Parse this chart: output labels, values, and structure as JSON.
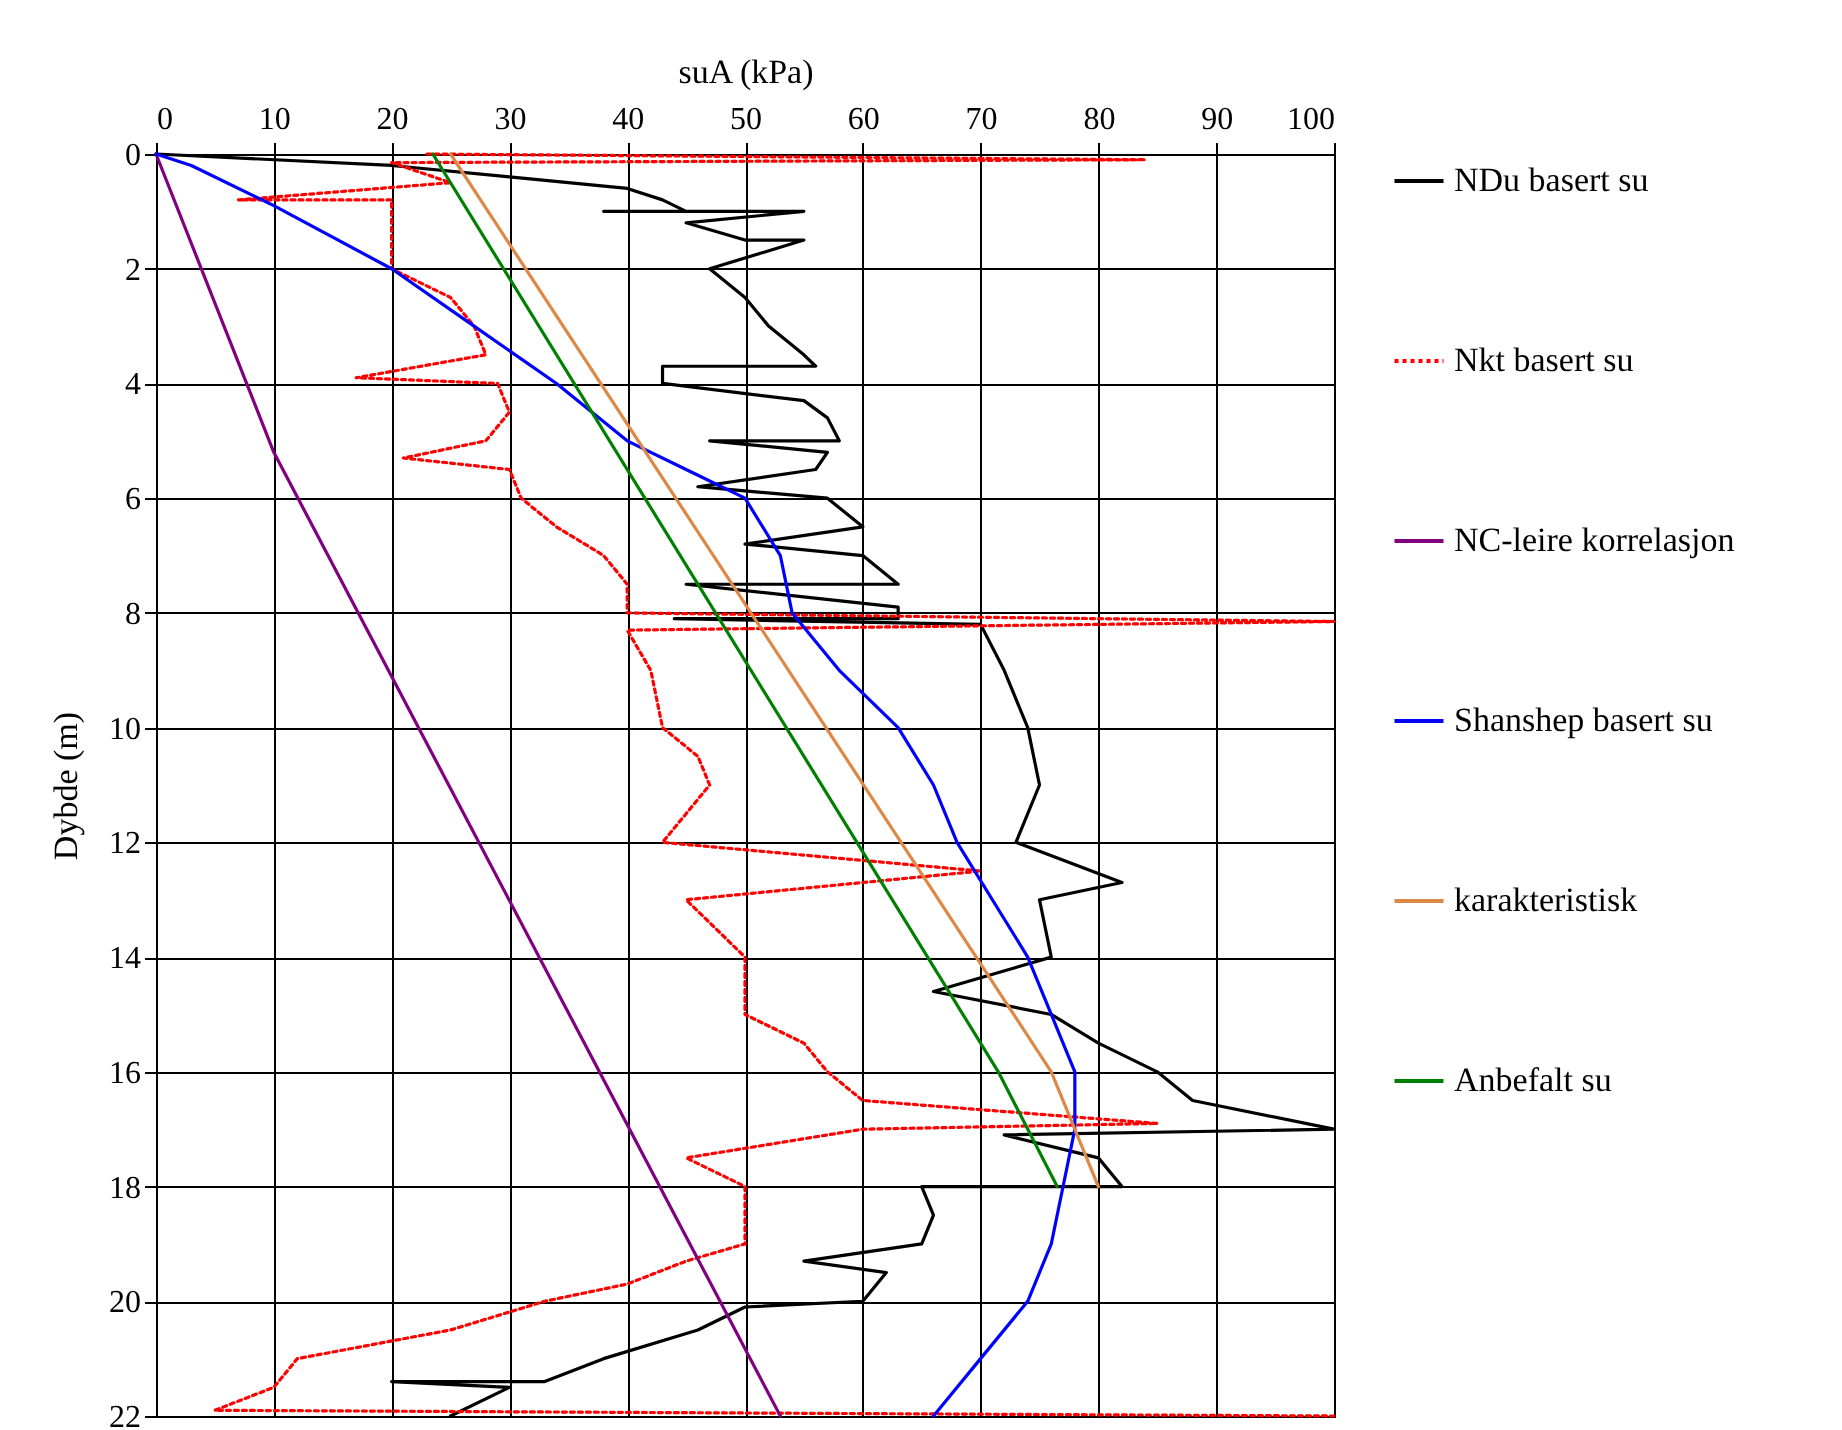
{
  "chart_data": {
    "type": "line",
    "xlabel": "suA (kPa)",
    "ylabel": "Dybde (m)",
    "xlim": [
      0,
      100
    ],
    "xticks": [
      0,
      10,
      20,
      30,
      40,
      50,
      60,
      70,
      80,
      90,
      100
    ],
    "ylim": [
      22,
      0
    ],
    "yticks": [
      0,
      2,
      4,
      6,
      8,
      10,
      12,
      14,
      16,
      18,
      20,
      22
    ],
    "grid": true,
    "legend": "right",
    "marker": "none",
    "series": [
      {
        "name": "NDu basert su",
        "color": "#000000",
        "line_style": "solid",
        "x": [
          0,
          20,
          30,
          40,
          43,
          45,
          38,
          55,
          45,
          50,
          55,
          47,
          50,
          52,
          55,
          56,
          43,
          43,
          55,
          57,
          58,
          47,
          57,
          56,
          46,
          57,
          60,
          50,
          60,
          63,
          45,
          63,
          63,
          44,
          70,
          72,
          74,
          75,
          73,
          82,
          75,
          76,
          66,
          76,
          80,
          85,
          88,
          100,
          72,
          80,
          82,
          65,
          66,
          65,
          55,
          62,
          60,
          50,
          46,
          38,
          33,
          20,
          30,
          25
        ],
        "values": [
          0,
          0.2,
          0.4,
          0.6,
          0.8,
          1.0,
          1.0,
          1.0,
          1.2,
          1.5,
          1.5,
          2,
          2.5,
          3,
          3.5,
          3.7,
          3.7,
          4.0,
          4.3,
          4.6,
          5.0,
          5.0,
          5.2,
          5.5,
          5.8,
          6,
          6.5,
          6.8,
          7,
          7.5,
          7.5,
          7.9,
          8.1,
          8.1,
          8.2,
          9,
          10,
          11,
          12,
          12.7,
          13,
          14,
          14.6,
          15,
          15.5,
          16,
          16.5,
          17,
          17.1,
          17.5,
          18,
          18,
          18.5,
          19,
          19.3,
          19.5,
          20,
          20.1,
          20.5,
          21,
          21.4,
          21.4,
          21.5,
          22
        ]
      },
      {
        "name": "Nkt basert su",
        "color": "#ff0000",
        "line_style": "dotted",
        "x": [
          23,
          84,
          20,
          25,
          7,
          20,
          20,
          20,
          20,
          25,
          27,
          28,
          17,
          29,
          30,
          28,
          21,
          30,
          31,
          34,
          38,
          40,
          40,
          100,
          40,
          42,
          43,
          46,
          47,
          43,
          70,
          45,
          50,
          50,
          55,
          57,
          60,
          85,
          60,
          45,
          50,
          50,
          50,
          45,
          40,
          33,
          25,
          12,
          10,
          5,
          100
        ],
        "values": [
          0,
          0.1,
          0.15,
          0.5,
          0.8,
          0.8,
          1.0,
          1.5,
          2,
          2.5,
          3,
          3.5,
          3.9,
          4,
          4.5,
          5,
          5.3,
          5.5,
          6,
          6.5,
          7,
          7.5,
          8,
          8.15,
          8.3,
          9,
          10,
          10.5,
          11,
          12,
          12.5,
          13,
          14,
          15,
          15.5,
          16,
          16.5,
          16.9,
          17,
          17.5,
          18,
          18.5,
          19,
          19.3,
          19.7,
          20,
          20.5,
          21,
          21.5,
          21.9,
          22
        ]
      },
      {
        "name": "NC-leire korrelasjon",
        "color": "#800080",
        "line_style": "solid",
        "x": [
          0,
          10,
          53
        ],
        "values": [
          0,
          5.2,
          22
        ]
      },
      {
        "name": "Shanshep basert su",
        "color": "#0000ff",
        "line_style": "solid",
        "x": [
          0,
          3,
          10,
          20,
          27,
          34,
          40,
          45,
          50,
          53,
          54,
          58,
          63,
          66,
          68,
          71,
          74,
          76,
          78,
          78,
          77,
          76,
          74,
          70,
          66
        ],
        "values": [
          0,
          0.2,
          0.9,
          2,
          3,
          4,
          5,
          5.5,
          6,
          7,
          8,
          9,
          10,
          11,
          12,
          13,
          14,
          15,
          16,
          17,
          18,
          19,
          20,
          21,
          22
        ]
      },
      {
        "name": "karakteristisk",
        "color": "#dd8844",
        "line_style": "solid",
        "x": [
          25,
          76,
          80
        ],
        "values": [
          0,
          16,
          18
        ]
      },
      {
        "name": "Anbefalt su",
        "color": "#008000",
        "line_style": "solid",
        "x": [
          23.5,
          71.5,
          76.5
        ],
        "values": [
          0,
          16,
          18
        ]
      }
    ]
  }
}
